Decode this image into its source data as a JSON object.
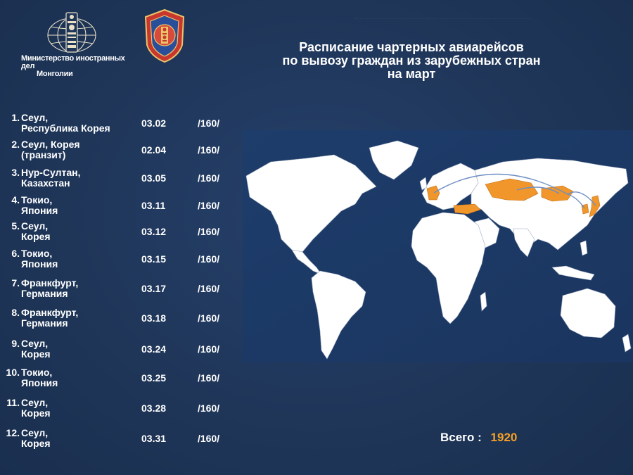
{
  "header": {
    "ministry_caption_line1": "Министерство иностранных дел",
    "ministry_caption_line2": "Монголии",
    "title_line1": "Расписание чартерных авиарейсов",
    "title_line2": "по вывозу граждан из зарубежных стран",
    "title_line3": "на март"
  },
  "flights": [
    {
      "num": "1.",
      "city_line1": "Сеул,",
      "city_line2": "Республика Корея",
      "date": "03.02",
      "seats": "/160/"
    },
    {
      "num": "2.",
      "city_line1": "Сеул, Корея",
      "city_line2": "(транзит)",
      "date": "02.04",
      "seats": "/160/"
    },
    {
      "num": "3.",
      "city_line1": "Нур-Султан,",
      "city_line2": "Казахстан",
      "date": "03.05",
      "seats": "/160/"
    },
    {
      "num": "4.",
      "city_line1": "Токио,",
      "city_line2": "Япония",
      "date": "03.11",
      "seats": "/160/"
    },
    {
      "num": "5.",
      "city_line1": "Сеул,",
      "city_line2": "Корея",
      "date": "03.12",
      "seats": "/160/"
    },
    {
      "num": "6.",
      "city_line1": "Токио,",
      "city_line2": "Япония",
      "date": "03.15",
      "seats": "/160/"
    },
    {
      "num": "7.",
      "city_line1": "Франкфурт,",
      "city_line2": "Германия",
      "date": "03.17",
      "seats": "/160/"
    },
    {
      "num": "8.",
      "city_line1": "Франкфурт,",
      "city_line2": "Германия",
      "date": "03.18",
      "seats": "/160/"
    },
    {
      "num": "9.",
      "city_line1": "Сеул,",
      "city_line2": "Корея",
      "date": "03.24",
      "seats": "/160/"
    },
    {
      "num": "10.",
      "city_line1": "Токио,",
      "city_line2": "Япония",
      "date": "03.25",
      "seats": "/160/"
    },
    {
      "num": "11.",
      "city_line1": "Сеул,",
      "city_line2": "Корея",
      "date": "03.28",
      "seats": "/160/"
    },
    {
      "num": "12.",
      "city_line1": "Сеул,",
      "city_line2": "Корея",
      "date": "03.31",
      "seats": "/160/"
    }
  ],
  "total": {
    "label": "Всего :",
    "value": "1920"
  },
  "map": {
    "highlighted_regions": [
      "Germany",
      "Turkey",
      "Kazakhstan",
      "Mongolia",
      "South Korea",
      "Japan"
    ],
    "land_color": "#ffffff",
    "highlight_color": "#f0962a",
    "ocean_color": "#1d3a66",
    "route_color": "#6f8fc4"
  },
  "colors": {
    "background": "#1f3659",
    "accent": "#f5a023",
    "text": "#ffffff"
  }
}
